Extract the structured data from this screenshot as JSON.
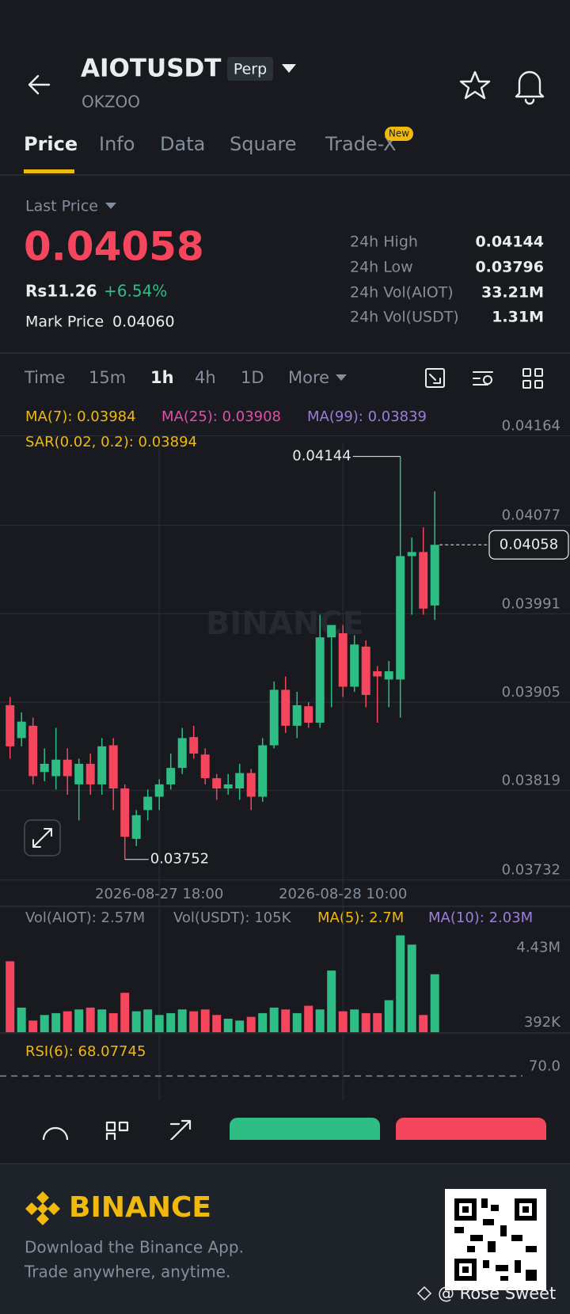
{
  "header": {
    "symbol": "AIOTUSDT",
    "badge": "Perp",
    "subtitle": "OKZOO"
  },
  "tabs": [
    "Price",
    "Info",
    "Data",
    "Square",
    "Trade-X"
  ],
  "new_badge": "New",
  "summary": {
    "last_price_label": "Last Price",
    "last_price": "0.04058",
    "local_price": "Rs11.26",
    "change": "+6.54%",
    "mark_price_label": "Mark Price",
    "mark_price": "0.04060",
    "stats": [
      [
        "24h High",
        "0.04144"
      ],
      [
        "24h Low",
        "0.03796"
      ],
      [
        "24h Vol(AIOT)",
        "33.21M"
      ],
      [
        "24h Vol(USDT)",
        "1.31M"
      ]
    ]
  },
  "intervals": [
    "Time",
    "15m",
    "1h",
    "4h",
    "1D",
    "More"
  ],
  "indicators": {
    "ma7": "MA(7): 0.03984",
    "ma25": "MA(25): 0.03908",
    "ma99": "MA(99): 0.03839",
    "sar": "SAR(0.02, 0.2): 0.03894"
  },
  "watermark": "BINANCE",
  "chart_data": {
    "type": "candlestick",
    "categories": [
      null,
      null,
      null,
      null,
      null,
      null,
      null,
      null,
      null,
      null,
      null,
      null,
      null,
      "2026-08-27 18:00",
      null,
      null,
      null,
      null,
      null,
      null,
      null,
      null,
      null,
      null,
      null,
      null,
      null,
      null,
      null,
      "2026-08-28 10:00",
      null,
      null,
      null,
      null,
      null,
      null,
      null,
      null
    ],
    "open": [
      0.03902,
      0.0387,
      0.03882,
      0.03837,
      0.03833,
      0.03849,
      0.03825,
      0.03845,
      0.03825,
      0.03863,
      0.03821,
      0.03772,
      0.038,
      0.03813,
      0.03825,
      0.03841,
      0.03871,
      0.03854,
      0.03831,
      0.03821,
      0.03821,
      0.03836,
      0.03813,
      0.03863,
      0.03917,
      0.03882,
      0.03901,
      0.03885,
      0.03968,
      0.03972,
      0.0392,
      0.03959,
      0.03935,
      0.03927,
      0.03927,
      0.04047,
      0.04051,
      0.03999
    ],
    "high": [
      0.0391,
      0.03895,
      0.0389,
      0.0386,
      0.0388,
      0.0386,
      0.0385,
      0.03855,
      0.0387,
      0.0387,
      0.03825,
      0.038,
      0.0382,
      0.0383,
      0.03855,
      0.0388,
      0.03882,
      0.0386,
      0.03835,
      0.03835,
      0.03845,
      0.0384,
      0.0387,
      0.03925,
      0.0393,
      0.03915,
      0.03905,
      0.0399,
      0.0398,
      0.0398,
      0.0397,
      0.03965,
      0.0394,
      0.03945,
      0.04144,
      0.04065,
      0.04075,
      0.0411
    ],
    "low": [
      0.0385,
      0.03862,
      0.03825,
      0.03828,
      0.0382,
      0.03815,
      0.0379,
      0.03815,
      0.03815,
      0.038,
      0.03752,
      0.03765,
      0.0379,
      0.038,
      0.0382,
      0.03835,
      0.0385,
      0.03825,
      0.0381,
      0.03815,
      0.0381,
      0.038,
      0.03808,
      0.0386,
      0.03875,
      0.0387,
      0.0388,
      0.0388,
      0.039,
      0.0391,
      0.03915,
      0.039,
      0.03885,
      0.039,
      0.0389,
      0.0399,
      0.0399,
      0.03985
    ],
    "close": [
      0.03862,
      0.03886,
      0.03833,
      0.03845,
      0.03849,
      0.03833,
      0.03845,
      0.03825,
      0.03862,
      0.03821,
      0.03774,
      0.03795,
      0.03813,
      0.03825,
      0.03841,
      0.0387,
      0.03855,
      0.03831,
      0.03821,
      0.03825,
      0.03836,
      0.03813,
      0.03863,
      0.03917,
      0.03882,
      0.03902,
      0.03885,
      0.03968,
      0.0398,
      0.0392,
      0.03961,
      0.03912,
      0.0393,
      0.03935,
      0.04047,
      0.04051,
      0.03996,
      0.04058
    ],
    "up_color": "#2ebd85",
    "down_color": "#f6465d",
    "ylim": [
      0.03732,
      0.04164
    ],
    "yticks": [
      0.04164,
      0.04077,
      0.03991,
      0.03905,
      0.03819,
      0.03732
    ],
    "grid": true,
    "volume": {
      "labels": [
        "Vol(AIOT): 2.57M",
        "Vol(USDT): 105K",
        "MA(5): 2.7M",
        "MA(10): 2.03M"
      ],
      "values": [
        3700000,
        1200000,
        500000,
        800000,
        900000,
        1000000,
        1100000,
        1200000,
        1100000,
        900000,
        2000000,
        1000000,
        1100000,
        800000,
        900000,
        1100000,
        1000000,
        1100000,
        800000,
        600000,
        500000,
        700000,
        900000,
        1200000,
        1100000,
        900000,
        1300000,
        1100000,
        3200000,
        1000000,
        1100000,
        900000,
        900000,
        1600000,
        5100000,
        4600000,
        800000,
        3000000
      ],
      "ylim": [
        0,
        5500000
      ],
      "yticks": [
        {
          "value": 4430000,
          "label": "4.43M"
        },
        {
          "value": 392000,
          "label": "392K"
        }
      ]
    },
    "rsi": {
      "label": "RSI(6): 68.07745",
      "ylim": [
        50,
        80
      ],
      "yticks": [
        {
          "value": 70,
          "label": "70.0"
        }
      ]
    }
  },
  "footer": {
    "brand": "BINANCE",
    "line1": "Download the Binance App.",
    "line2": "Trade anywhere, anytime.",
    "credit": "@ Rose Sweet"
  }
}
